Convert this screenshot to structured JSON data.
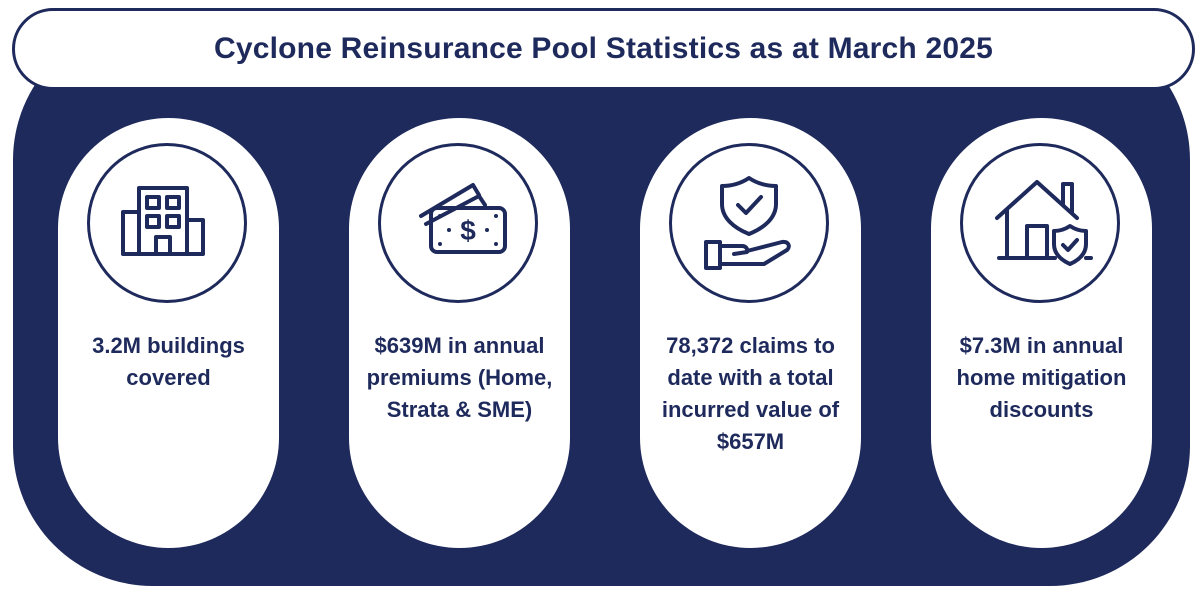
{
  "title": "Cyclone Reinsurance Pool Statistics as at March 2025",
  "colors": {
    "navy": "#1f2a5c",
    "white": "#ffffff"
  },
  "stats": [
    {
      "icon": "building-icon",
      "text": "3.2M buildings covered"
    },
    {
      "icon": "money-icon",
      "text": "$639M in annual premiums (Home, Strata & SME)"
    },
    {
      "icon": "hand-shield-icon",
      "text": "78,372 claims to date with a total incurred value of $657M"
    },
    {
      "icon": "house-shield-icon",
      "text": "$7.3M in annual home mitigation discounts"
    }
  ]
}
